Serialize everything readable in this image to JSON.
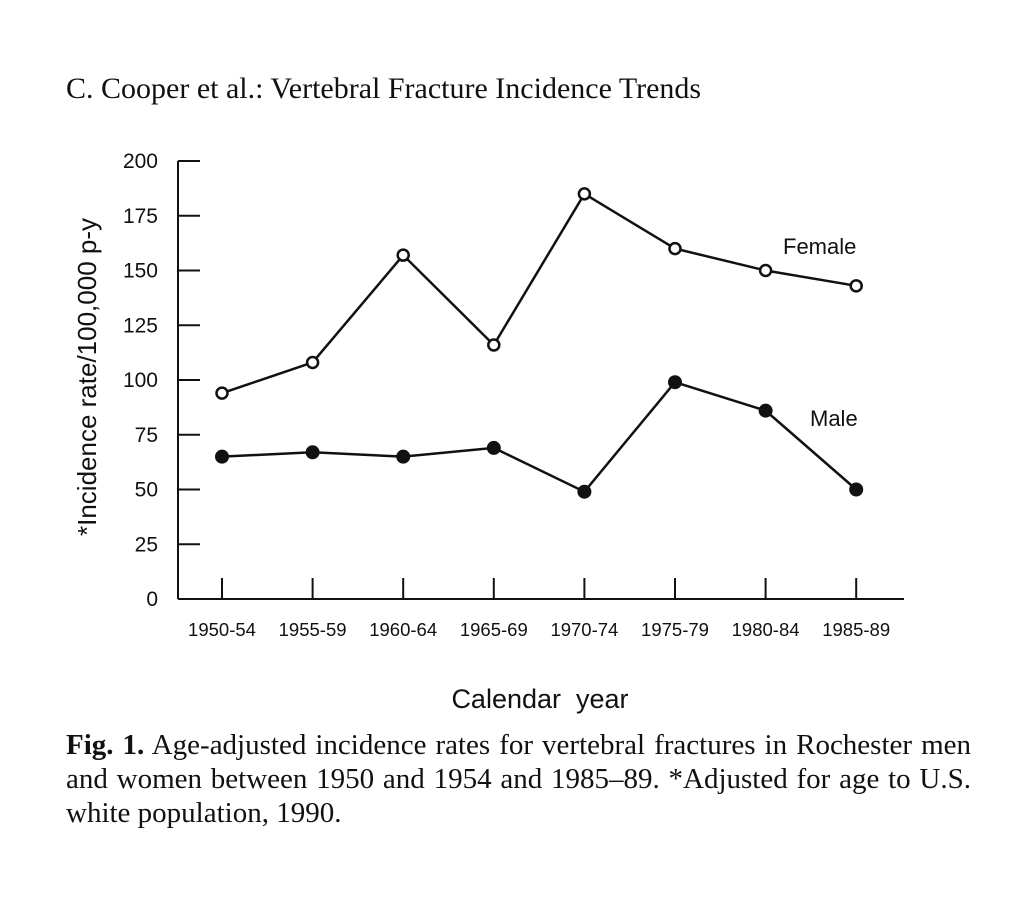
{
  "header": "C. Cooper et al.: Vertebral Fracture Incidence Trends",
  "chart_data": {
    "type": "line",
    "title": "",
    "xlabel": "Calendar  year",
    "ylabel": "*Incidence rate/100,000 p-y",
    "ylim": [
      0,
      200
    ],
    "yticks": [
      "0",
      "25",
      "50",
      "75",
      "100",
      "125",
      "150",
      "175",
      "200"
    ],
    "categories": [
      "1950-54",
      "1955-59",
      "1960-64",
      "1965-69",
      "1970-74",
      "1975-79",
      "1980-84",
      "1985-89"
    ],
    "series": [
      {
        "name": "Female",
        "marker": "open-circle",
        "values": [
          94,
          108,
          157,
          116,
          185,
          160,
          150,
          143
        ]
      },
      {
        "name": "Male",
        "marker": "filled-circle",
        "values": [
          65,
          67,
          65,
          69,
          49,
          99,
          86,
          50
        ]
      }
    ]
  },
  "caption": {
    "label": "Fig. 1.",
    "text": "Age-adjusted incidence rates for vertebral fractures in Rochester men and women between 1950 and 1954 and 1985–89. *Adjusted for age to U.S. white population, 1990."
  }
}
